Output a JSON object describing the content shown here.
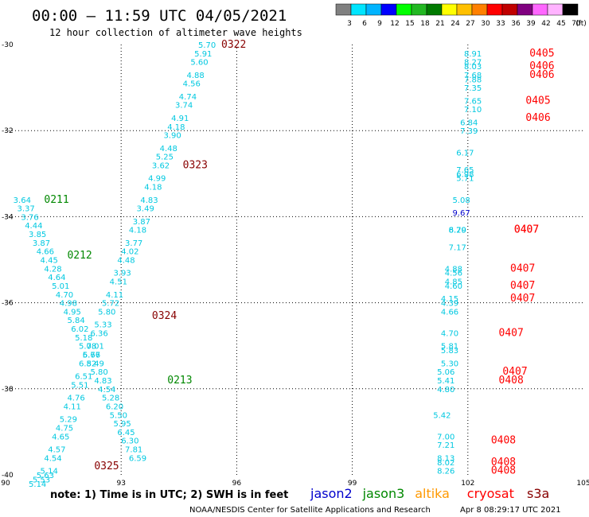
{
  "header": {
    "title": "00:00 – 11:59 UTC 04/05/2021",
    "subtitle": "12 hour collection of altimeter wave heights"
  },
  "colorbar": {
    "colors": [
      "#808080",
      "#00e5ff",
      "#00b4ff",
      "#0000ff",
      "#00ff00",
      "#22b822",
      "#007a00",
      "#ffff00",
      "#ffc000",
      "#ff8000",
      "#ff0000",
      "#c00000",
      "#800080",
      "#ff66ff",
      "#ffb3ff",
      "#000000"
    ],
    "labels": [
      "3",
      "6",
      "9",
      "12",
      "15",
      "18",
      "21",
      "24",
      "27",
      "30",
      "33",
      "36",
      "39",
      "42",
      "45",
      "70",
      "(ft)"
    ]
  },
  "axes": {
    "x_ticks": [
      "90",
      "93",
      "96",
      "99",
      "102",
      "105"
    ],
    "y_ticks": [
      "-30",
      "-32",
      "-34",
      "-36",
      "-38",
      "-40"
    ]
  },
  "footer": {
    "note": "note:  1) Time is in UTC;  2) SWH is in feet",
    "credit": "NOAA/NESDIS Center for Satellite Applications and Research",
    "timestamp": "Apr  8 08:29:17 UTC 2021",
    "satellites": [
      {
        "name": "jason2",
        "color": "#0000cc"
      },
      {
        "name": "jason3",
        "color": "#008800"
      },
      {
        "name": "altika",
        "color": "#ff9900"
      },
      {
        "name": "cryosat",
        "color": "#ff0000"
      },
      {
        "name": "s3a",
        "color": "#880000"
      }
    ]
  },
  "chart_data": {
    "type": "scatter",
    "xlim": [
      90,
      105
    ],
    "ylim": [
      -40,
      -30
    ],
    "x_ticks": [
      90,
      93,
      96,
      99,
      102,
      105
    ],
    "y_ticks": [
      -30,
      -32,
      -34,
      -36,
      -38,
      -40
    ],
    "grid": true,
    "pass_labels": [
      {
        "text": "0322",
        "lon": 95.6,
        "lat": -30.0,
        "color": "#880000"
      },
      {
        "text": "0323",
        "lon": 94.6,
        "lat": -32.8,
        "color": "#880000"
      },
      {
        "text": "0324",
        "lon": 93.8,
        "lat": -36.3,
        "color": "#880000"
      },
      {
        "text": "0325",
        "lon": 92.3,
        "lat": -39.8,
        "color": "#880000"
      },
      {
        "text": "0211",
        "lon": 91.0,
        "lat": -33.6,
        "color": "#008800"
      },
      {
        "text": "0212",
        "lon": 91.6,
        "lat": -34.9,
        "color": "#008800"
      },
      {
        "text": "0213",
        "lon": 94.2,
        "lat": -37.8,
        "color": "#008800"
      },
      {
        "text": "0405",
        "lon": 103.6,
        "lat": -30.2,
        "color": "#ff0000"
      },
      {
        "text": "0406",
        "lon": 103.6,
        "lat": -30.5,
        "color": "#ff0000"
      },
      {
        "text": "0406",
        "lon": 103.6,
        "lat": -30.7,
        "color": "#ff0000"
      },
      {
        "text": "0405",
        "lon": 103.5,
        "lat": -31.3,
        "color": "#ff0000"
      },
      {
        "text": "0406",
        "lon": 103.5,
        "lat": -31.7,
        "color": "#ff0000"
      },
      {
        "text": "0407",
        "lon": 103.2,
        "lat": -34.3,
        "color": "#ff0000"
      },
      {
        "text": "0407",
        "lon": 103.2,
        "lat": -34.3,
        "color": "#ff0000"
      },
      {
        "text": "0407",
        "lon": 103.1,
        "lat": -35.2,
        "color": "#ff0000"
      },
      {
        "text": "0407",
        "lon": 103.1,
        "lat": -35.6,
        "color": "#ff0000"
      },
      {
        "text": "0407",
        "lon": 103.1,
        "lat": -35.9,
        "color": "#ff0000"
      },
      {
        "text": "0407",
        "lon": 102.8,
        "lat": -36.7,
        "color": "#ff0000"
      },
      {
        "text": "0407",
        "lon": 102.9,
        "lat": -37.6,
        "color": "#ff0000"
      },
      {
        "text": "0408",
        "lon": 102.8,
        "lat": -37.8,
        "color": "#ff0000"
      },
      {
        "text": "0408",
        "lon": 102.6,
        "lat": -39.2,
        "color": "#ff0000"
      },
      {
        "text": "0408",
        "lon": 102.6,
        "lat": -39.7,
        "color": "#ff0000"
      },
      {
        "text": "0408",
        "lon": 102.6,
        "lat": -39.9,
        "color": "#ff0000"
      }
    ],
    "series": [
      {
        "name": "0322",
        "color": "#00c8e0",
        "points": [
          [
            95.0,
            -30.0,
            "5.70"
          ],
          [
            94.9,
            -30.2,
            "5.91"
          ],
          [
            94.8,
            -30.4,
            "5.60"
          ],
          [
            94.7,
            -30.7,
            "4.88"
          ],
          [
            94.6,
            -30.9,
            "4.56"
          ],
          [
            94.5,
            -31.2,
            "4.74"
          ],
          [
            94.4,
            -31.4,
            "3.74"
          ],
          [
            94.3,
            -31.7,
            "4.91"
          ],
          [
            94.2,
            -31.9,
            "4.18"
          ],
          [
            94.1,
            -32.1,
            "3.90"
          ],
          [
            94.0,
            -32.4,
            "4.48"
          ],
          [
            93.9,
            -32.6,
            "5.25"
          ],
          [
            93.8,
            -32.8,
            "3.62"
          ],
          [
            93.7,
            -33.1,
            "4.99"
          ],
          [
            93.6,
            -33.3,
            "4.18"
          ],
          [
            93.5,
            -33.6,
            "4.83"
          ],
          [
            93.4,
            -33.8,
            "3.49"
          ],
          [
            93.3,
            -34.1,
            "3.87"
          ],
          [
            93.2,
            -34.3,
            "4.18"
          ],
          [
            93.1,
            -34.6,
            "3.77"
          ],
          [
            93.0,
            -34.8,
            "4.02"
          ],
          [
            92.9,
            -35.0,
            "4.48"
          ],
          [
            92.8,
            -35.3,
            "3.93"
          ],
          [
            92.7,
            -35.5,
            "4.51"
          ],
          [
            92.6,
            -35.8,
            "4.11"
          ],
          [
            92.5,
            -36.0,
            "5.72"
          ],
          [
            92.4,
            -36.2,
            "5.80"
          ],
          [
            92.3,
            -36.5,
            "5.33"
          ],
          [
            92.2,
            -36.7,
            "6.36"
          ],
          [
            92.1,
            -37.0,
            "7.01"
          ],
          [
            92.0,
            -37.2,
            "6.67"
          ],
          [
            91.9,
            -37.4,
            "6.82"
          ],
          [
            91.8,
            -37.7,
            "6.51"
          ],
          [
            91.7,
            -37.9,
            "5.51"
          ],
          [
            91.6,
            -38.2,
            "4.76"
          ],
          [
            91.5,
            -38.4,
            "4.11"
          ],
          [
            91.4,
            -38.7,
            "5.29"
          ],
          [
            91.3,
            -38.9,
            "4.75"
          ],
          [
            91.2,
            -39.1,
            "4.65"
          ],
          [
            91.1,
            -39.4,
            "4.57"
          ],
          [
            91.0,
            -39.6,
            "4.54"
          ],
          [
            90.9,
            -39.9,
            "5.14"
          ],
          [
            90.8,
            -40.0,
            "5.63"
          ],
          [
            90.7,
            -40.1,
            "5.53"
          ],
          [
            90.6,
            -40.2,
            "5.14"
          ]
        ]
      },
      {
        "name": "0211",
        "color": "#00c8e0",
        "points": [
          [
            90.2,
            -33.6,
            "3.64"
          ],
          [
            90.3,
            -33.8,
            "3.37"
          ],
          [
            90.4,
            -34.0,
            "3.76"
          ],
          [
            90.5,
            -34.2,
            "4.44"
          ],
          [
            90.6,
            -34.4,
            "3.85"
          ],
          [
            90.7,
            -34.6,
            "3.87"
          ],
          [
            90.8,
            -34.8,
            "4.66"
          ],
          [
            90.9,
            -35.0,
            "4.45"
          ],
          [
            91.0,
            -35.2,
            "4.28"
          ],
          [
            91.1,
            -35.4,
            "4.64"
          ],
          [
            91.2,
            -35.6,
            "5.01"
          ],
          [
            91.3,
            -35.8,
            "4.70"
          ],
          [
            91.4,
            -36.0,
            "4.98"
          ],
          [
            91.5,
            -36.2,
            "4.95"
          ],
          [
            91.6,
            -36.4,
            "5.84"
          ],
          [
            91.7,
            -36.6,
            "6.02"
          ],
          [
            91.8,
            -36.8,
            "5.18"
          ],
          [
            91.9,
            -37.0,
            "5.08"
          ],
          [
            92.0,
            -37.2,
            "5.76"
          ],
          [
            92.1,
            -37.4,
            "5.49"
          ],
          [
            92.2,
            -37.6,
            "5.80"
          ],
          [
            92.3,
            -37.8,
            "4.83"
          ],
          [
            92.4,
            -38.0,
            "4.54"
          ],
          [
            92.5,
            -38.2,
            "5.28"
          ],
          [
            92.6,
            -38.4,
            "6.20"
          ],
          [
            92.7,
            -38.6,
            "5.50"
          ],
          [
            92.8,
            -38.8,
            "5.95"
          ],
          [
            92.9,
            -39.0,
            "6.45"
          ],
          [
            93.0,
            -39.2,
            "6.30"
          ],
          [
            93.1,
            -39.4,
            "7.81"
          ],
          [
            93.2,
            -39.6,
            "6.59"
          ]
        ]
      },
      {
        "name": "0405-0408",
        "color": "#00c8e0",
        "points": [
          [
            101.9,
            -30.2,
            "8.91"
          ],
          [
            101.9,
            -30.4,
            "8.27"
          ],
          [
            101.9,
            -30.5,
            "8.03"
          ],
          [
            101.9,
            -30.7,
            "7.68"
          ],
          [
            101.9,
            -30.8,
            "7.88"
          ],
          [
            101.9,
            -31.0,
            "7.35"
          ],
          [
            101.9,
            -31.3,
            "7.65"
          ],
          [
            101.9,
            -31.5,
            "7.10"
          ],
          [
            101.8,
            -31.8,
            "6.84"
          ],
          [
            101.8,
            -32.0,
            "7.39"
          ],
          [
            101.7,
            -32.5,
            "6.17"
          ],
          [
            101.7,
            -32.9,
            "7.65"
          ],
          [
            101.7,
            -33.0,
            "6.98"
          ],
          [
            101.7,
            -33.1,
            "5.71"
          ],
          [
            101.6,
            -33.6,
            "5.08"
          ],
          [
            101.5,
            -34.3,
            "8.20"
          ],
          [
            101.5,
            -34.3,
            "6.79"
          ],
          [
            101.5,
            -34.7,
            "7.17"
          ],
          [
            101.4,
            -35.2,
            "4.88"
          ],
          [
            101.4,
            -35.3,
            "4.56"
          ],
          [
            101.4,
            -35.5,
            "4.85"
          ],
          [
            101.4,
            -35.6,
            "4.60"
          ],
          [
            101.3,
            -35.9,
            "4.15"
          ],
          [
            101.3,
            -36.0,
            "4.39"
          ],
          [
            101.3,
            -36.2,
            "4.66"
          ],
          [
            101.3,
            -36.7,
            "4.70"
          ],
          [
            101.3,
            -37.0,
            "5.81"
          ],
          [
            101.3,
            -37.1,
            "5.83"
          ],
          [
            101.3,
            -37.4,
            "5.30"
          ],
          [
            101.2,
            -37.6,
            "5.06"
          ],
          [
            101.2,
            -37.8,
            "5.41"
          ],
          [
            101.2,
            -38.0,
            "4.80"
          ],
          [
            101.1,
            -38.6,
            "5.42"
          ],
          [
            101.2,
            -39.1,
            "7.00"
          ],
          [
            101.2,
            -39.3,
            "7.21"
          ],
          [
            101.2,
            -39.6,
            "8.13"
          ],
          [
            101.2,
            -39.7,
            "8.02"
          ],
          [
            101.2,
            -39.9,
            "8.26"
          ]
        ]
      },
      {
        "name": "jason2",
        "color": "#0000cc",
        "points": [
          [
            101.6,
            -33.9,
            "9.67"
          ]
        ]
      }
    ]
  }
}
